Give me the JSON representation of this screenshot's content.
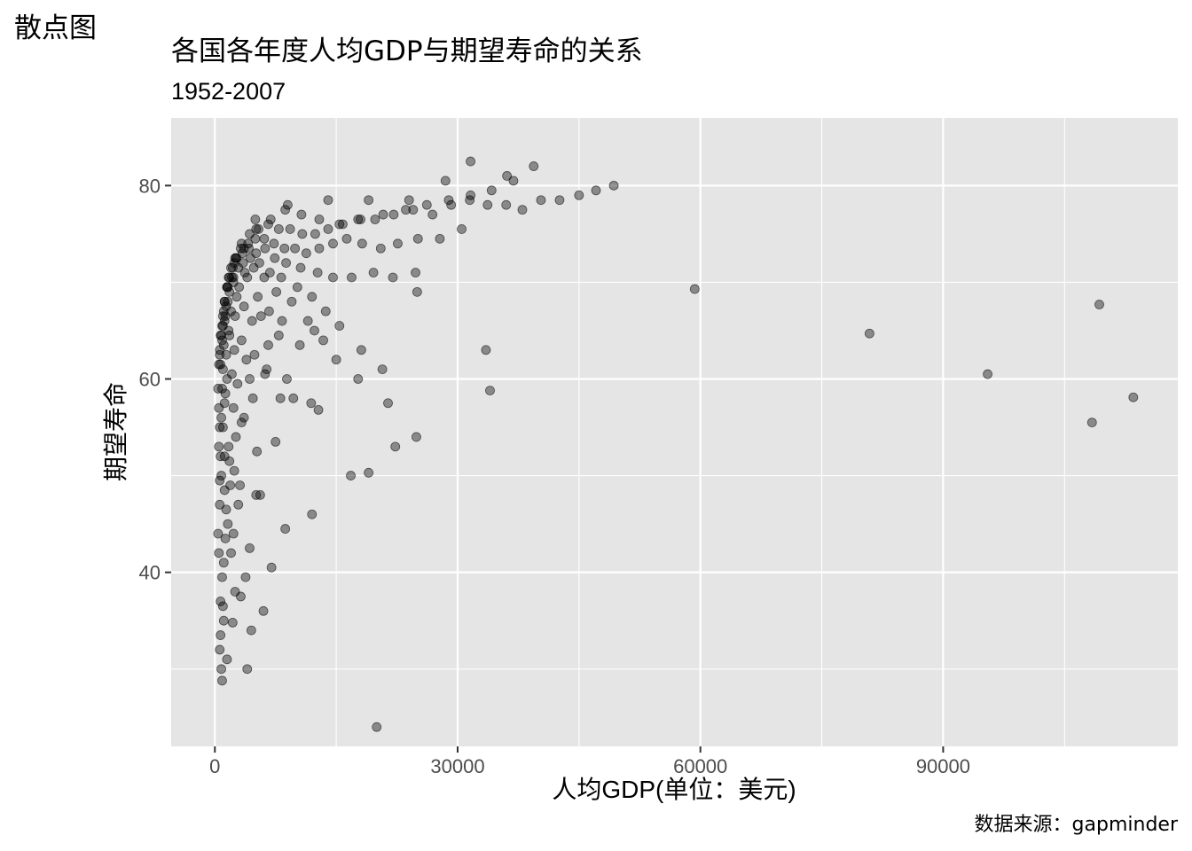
{
  "page_label": "散点图",
  "caption": "数据来源：gapminder",
  "chart_data": {
    "type": "scatter",
    "title": "各国各年度人均GDP与期望寿命的关系",
    "subtitle": "1952-2007",
    "xlabel": "人均GDP(单位：美元)",
    "ylabel": "期望寿命",
    "xlim": [
      -5400,
      119000
    ],
    "ylim": [
      22,
      87
    ],
    "xticks": [
      0,
      30000,
      60000,
      90000
    ],
    "xtick_labels": [
      "0",
      "30000",
      "60000",
      "90000"
    ],
    "xminor": [
      15000,
      45000,
      75000,
      105000
    ],
    "yticks": [
      40,
      60,
      80
    ],
    "ytick_labels": [
      "40",
      "60",
      "80"
    ],
    "yminor": [
      30,
      50,
      70
    ],
    "grid": true,
    "colors": {
      "panel": "#e5e5e5",
      "grid": "#ffffff",
      "point": "#000000",
      "point_alpha": 0.4,
      "tick": "#4d4d4d"
    },
    "series": [
      {
        "name": "",
        "x": [
          800,
          900,
          1000,
          1200,
          2000,
          4000,
          6000,
          7000,
          20000,
          600,
          700,
          1100,
          1500,
          2200,
          3200,
          4500,
          8700,
          12000,
          700,
          900,
          1100,
          1300,
          1600,
          2500,
          2900,
          5100,
          500,
          1400,
          1900,
          2300,
          3800,
          4300,
          600,
          800,
          1200,
          1700,
          2400,
          3100,
          5600,
          400,
          600,
          700,
          1000,
          1200,
          1800,
          2600,
          3600,
          5200,
          7500,
          500,
          800,
          1300,
          1500,
          2300,
          3300,
          4700,
          8100,
          11900,
          16800,
          600,
          900,
          1000,
          1400,
          2100,
          2800,
          4300,
          6400,
          500,
          700,
          1100,
          1800,
          2400,
          3900,
          6200,
          9700,
          12800,
          19000,
          400,
          600,
          800,
          1200,
          1700,
          2500,
          3300,
          4900,
          6600,
          8900,
          500,
          900,
          1300,
          1600,
          2000,
          2700,
          3600,
          4600,
          5700,
          7900,
          10500,
          12300,
          600,
          1000,
          1400,
          1800,
          2300,
          3000,
          4000,
          5300,
          6700,
          8300,
          700,
          1100,
          1500,
          2100,
          2900,
          3700,
          4800,
          6100,
          7600,
          9500,
          11500,
          13400,
          15000,
          17700,
          21400,
          22300,
          24900,
          900,
          1200,
          1700,
          2200,
          2700,
          3500,
          4400,
          5500,
          6800,
          8200,
          10200,
          12000,
          13700,
          15400,
          18100,
          20700,
          25000,
          33500,
          34000,
          1000,
          1500,
          2000,
          2600,
          3400,
          4200,
          5100,
          6200,
          7400,
          8800,
          10600,
          12700,
          14600,
          16900,
          19600,
          22000,
          24800,
          1200,
          1800,
          2500,
          3200,
          4100,
          5000,
          6100,
          7300,
          8600,
          9900,
          11300,
          12900,
          14600,
          16300,
          18200,
          20500,
          22600,
          25100,
          27800,
          30500,
          1600,
          2400,
          3300,
          4300,
          5400,
          6600,
          7900,
          9300,
          10800,
          12400,
          14000,
          15800,
          17700,
          19800,
          22100,
          24500,
          26900,
          29200,
          31500,
          33700,
          36000,
          38000,
          40300,
          42600,
          45000,
          47100,
          49300,
          2300,
          3600,
          5100,
          6900,
          8700,
          10700,
          12900,
          15400,
          18000,
          20800,
          23600,
          26200,
          28900,
          31600,
          34200,
          36900,
          39400,
          5000,
          9000,
          14000,
          19000,
          24000,
          28500,
          31600,
          36100,
          59300,
          80900,
          95500,
          108400,
          109300,
          113500
        ],
        "y": [
          30.0,
          28.8,
          36.5,
          52.0,
          42.0,
          30.0,
          36.0,
          40.5,
          24.0,
          32.0,
          33.5,
          35.0,
          31.0,
          34.8,
          37.5,
          34.0,
          44.5,
          46.0,
          37.0,
          39.5,
          41.0,
          43.5,
          45.0,
          38.0,
          47.0,
          48.0,
          42.0,
          46.5,
          49.0,
          44.0,
          39.5,
          42.5,
          47.0,
          50.0,
          48.5,
          53.0,
          50.5,
          49.0,
          48.0,
          44.0,
          49.5,
          52.0,
          55.0,
          57.5,
          51.5,
          54.0,
          56.0,
          52.5,
          53.5,
          53.0,
          56.0,
          58.5,
          60.0,
          57.0,
          55.5,
          58.0,
          58.0,
          57.5,
          50.0,
          55.0,
          59.0,
          61.0,
          62.5,
          60.5,
          59.5,
          60.0,
          61.0,
          57.0,
          61.5,
          63.5,
          64.5,
          63.0,
          62.0,
          60.5,
          58.0,
          56.8,
          50.3,
          59.0,
          62.5,
          64.5,
          66.0,
          65.0,
          66.5,
          64.0,
          62.5,
          63.5,
          60.0,
          61.5,
          64.0,
          66.5,
          68.0,
          67.0,
          68.5,
          67.5,
          66.0,
          66.5,
          64.5,
          63.5,
          65.0,
          63.0,
          65.5,
          67.5,
          69.0,
          70.0,
          69.5,
          70.5,
          68.5,
          67.0,
          66.0,
          64.5,
          67.0,
          69.5,
          70.5,
          71.5,
          71.0,
          71.5,
          70.5,
          69.0,
          68.0,
          66.0,
          64.0,
          62.0,
          60.0,
          57.5,
          53.0,
          54.0,
          65.5,
          68.0,
          70.5,
          71.5,
          72.5,
          72.0,
          72.5,
          72.0,
          71.0,
          70.5,
          69.5,
          68.5,
          67.0,
          65.5,
          63.0,
          61.0,
          69.0,
          63.0,
          58.8,
          66.5,
          69.5,
          71.5,
          72.5,
          73.0,
          73.5,
          73.0,
          73.5,
          72.5,
          72.0,
          71.5,
          71.0,
          70.5,
          70.5,
          71.0,
          70.5,
          71.0,
          68.0,
          70.5,
          72.5,
          73.5,
          74.0,
          74.5,
          74.5,
          74.0,
          73.5,
          73.5,
          73.0,
          73.5,
          74.0,
          74.5,
          74.0,
          73.5,
          74.0,
          74.5,
          74.5,
          75.5,
          69.5,
          72.0,
          74.0,
          75.0,
          75.5,
          76.0,
          75.5,
          75.5,
          75.0,
          75.0,
          75.5,
          76.0,
          76.5,
          76.5,
          77.0,
          77.5,
          77.0,
          78.0,
          78.5,
          78.0,
          78.0,
          77.5,
          78.5,
          78.5,
          79.0,
          79.5,
          80.0,
          70.5,
          73.5,
          75.5,
          76.5,
          77.5,
          77.0,
          76.5,
          76.0,
          76.5,
          77.0,
          77.5,
          78.0,
          78.5,
          79.0,
          79.5,
          80.5,
          82.0,
          76.5,
          78.0,
          78.5,
          78.5,
          78.5,
          80.5,
          82.5,
          81.0,
          69.3,
          64.7,
          60.5,
          55.5,
          67.7,
          58.1
        ]
      }
    ]
  }
}
